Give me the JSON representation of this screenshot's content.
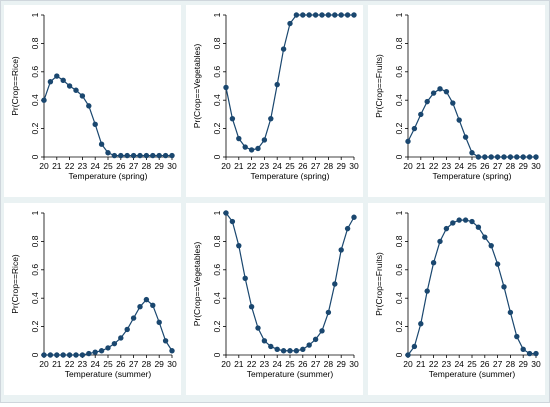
{
  "chart_data": [
    {
      "type": "line",
      "ylabel": "Pr(Crop==Rice)",
      "xlabel": "Temperature (spring)",
      "x": [
        20,
        20.5,
        21,
        21.5,
        22,
        22.5,
        23,
        23.5,
        24,
        24.5,
        25,
        25.5,
        26,
        26.5,
        27,
        27.5,
        28,
        28.5,
        29,
        29.5,
        30
      ],
      "y": [
        0.4,
        0.53,
        0.57,
        0.54,
        0.5,
        0.47,
        0.43,
        0.36,
        0.23,
        0.09,
        0.03,
        0.01,
        0.01,
        0.01,
        0.01,
        0.01,
        0.01,
        0.01,
        0.01,
        0.01,
        0.01
      ],
      "xlim": [
        20,
        30
      ],
      "ylim": [
        0,
        1
      ],
      "xticks": [
        "20",
        "21",
        "22",
        "23",
        "24",
        "25",
        "26",
        "27",
        "28",
        "29",
        "30"
      ],
      "yticks": [
        "0",
        "0.2",
        "0.4",
        "0.6",
        "0.8",
        "1"
      ]
    },
    {
      "type": "line",
      "ylabel": "Pr(Crop==Vegetables)",
      "xlabel": "Temperature (spring)",
      "x": [
        20,
        20.5,
        21,
        21.5,
        22,
        22.5,
        23,
        23.5,
        24,
        24.5,
        25,
        25.5,
        26,
        26.5,
        27,
        27.5,
        28,
        28.5,
        29,
        29.5,
        30
      ],
      "y": [
        0.49,
        0.27,
        0.13,
        0.07,
        0.05,
        0.06,
        0.12,
        0.27,
        0.51,
        0.76,
        0.94,
        1.0,
        1.0,
        1.0,
        1.0,
        1.0,
        1.0,
        1.0,
        1.0,
        1.0,
        1.0
      ],
      "xlim": [
        20,
        30
      ],
      "ylim": [
        0,
        1
      ],
      "xticks": [
        "20",
        "21",
        "22",
        "23",
        "24",
        "25",
        "26",
        "27",
        "28",
        "29",
        "30"
      ],
      "yticks": [
        "0",
        "0.2",
        "0.4",
        "0.6",
        "0.8",
        "1"
      ]
    },
    {
      "type": "line",
      "ylabel": "Pr(Crop==Fruits)",
      "xlabel": "Temperature (spring)",
      "x": [
        20,
        20.5,
        21,
        21.5,
        22,
        22.5,
        23,
        23.5,
        24,
        24.5,
        25,
        25.5,
        26,
        26.5,
        27,
        27.5,
        28,
        28.5,
        29,
        29.5,
        30
      ],
      "y": [
        0.11,
        0.2,
        0.3,
        0.39,
        0.45,
        0.48,
        0.46,
        0.38,
        0.26,
        0.14,
        0.03,
        0.0,
        0.0,
        0.0,
        0.0,
        0.0,
        0.0,
        0.0,
        0.0,
        0.0,
        0.0
      ],
      "xlim": [
        20,
        30
      ],
      "ylim": [
        0,
        1
      ],
      "xticks": [
        "20",
        "21",
        "22",
        "23",
        "24",
        "25",
        "26",
        "27",
        "28",
        "29",
        "30"
      ],
      "yticks": [
        "0",
        "0.2",
        "0.4",
        "0.6",
        "0.8",
        "1"
      ]
    },
    {
      "type": "line",
      "ylabel": "Pr(Crop==Rice)",
      "xlabel": "Temperature (summer)",
      "x": [
        20,
        20.5,
        21,
        21.5,
        22,
        22.5,
        23,
        23.5,
        24,
        24.5,
        25,
        25.5,
        26,
        26.5,
        27,
        27.5,
        28,
        28.5,
        29,
        29.5,
        30
      ],
      "y": [
        0.0,
        0.0,
        0.0,
        0.0,
        0.0,
        0.0,
        0.0,
        0.01,
        0.02,
        0.03,
        0.05,
        0.08,
        0.12,
        0.18,
        0.26,
        0.34,
        0.39,
        0.35,
        0.23,
        0.1,
        0.03
      ],
      "xlim": [
        20,
        30
      ],
      "ylim": [
        0,
        1
      ],
      "xticks": [
        "20",
        "21",
        "22",
        "23",
        "24",
        "25",
        "26",
        "27",
        "28",
        "29",
        "30"
      ],
      "yticks": [
        "0",
        "0.2",
        "0.4",
        "0.6",
        "0.8",
        "1"
      ]
    },
    {
      "type": "line",
      "ylabel": "Pr(Crop==Vegetables)",
      "xlabel": "Temperature (summer)",
      "x": [
        20,
        20.5,
        21,
        21.5,
        22,
        22.5,
        23,
        23.5,
        24,
        24.5,
        25,
        25.5,
        26,
        26.5,
        27,
        27.5,
        28,
        28.5,
        29,
        29.5,
        30
      ],
      "y": [
        1.0,
        0.94,
        0.77,
        0.54,
        0.34,
        0.19,
        0.1,
        0.06,
        0.04,
        0.03,
        0.03,
        0.03,
        0.04,
        0.07,
        0.11,
        0.17,
        0.3,
        0.5,
        0.74,
        0.89,
        0.97
      ],
      "xlim": [
        20,
        30
      ],
      "ylim": [
        0,
        1
      ],
      "xticks": [
        "20",
        "21",
        "22",
        "23",
        "24",
        "25",
        "26",
        "27",
        "28",
        "29",
        "30"
      ],
      "yticks": [
        "0",
        "0.2",
        "0.4",
        "0.6",
        "0.8",
        "1"
      ]
    },
    {
      "type": "line",
      "ylabel": "Pr(Crop==Fruits)",
      "xlabel": "Temperature (summer)",
      "x": [
        20,
        20.5,
        21,
        21.5,
        22,
        22.5,
        23,
        23.5,
        24,
        24.5,
        25,
        25.5,
        26,
        26.5,
        27,
        27.5,
        28,
        28.5,
        29,
        29.5,
        30
      ],
      "y": [
        0.0,
        0.06,
        0.22,
        0.45,
        0.65,
        0.8,
        0.89,
        0.93,
        0.95,
        0.95,
        0.94,
        0.9,
        0.83,
        0.77,
        0.64,
        0.48,
        0.3,
        0.13,
        0.04,
        0.01,
        0.01
      ],
      "xlim": [
        20,
        30
      ],
      "ylim": [
        0,
        1
      ],
      "xticks": [
        "20",
        "21",
        "22",
        "23",
        "24",
        "25",
        "26",
        "27",
        "28",
        "29",
        "30"
      ],
      "yticks": [
        "0",
        "0.2",
        "0.4",
        "0.6",
        "0.8",
        "1"
      ]
    }
  ],
  "colors": {
    "figure_bg": "#eaf2f3",
    "plot_bg": "#ffffff",
    "panel_outer": "#ffffff",
    "series": "#1a476f",
    "axis": "#000000"
  }
}
